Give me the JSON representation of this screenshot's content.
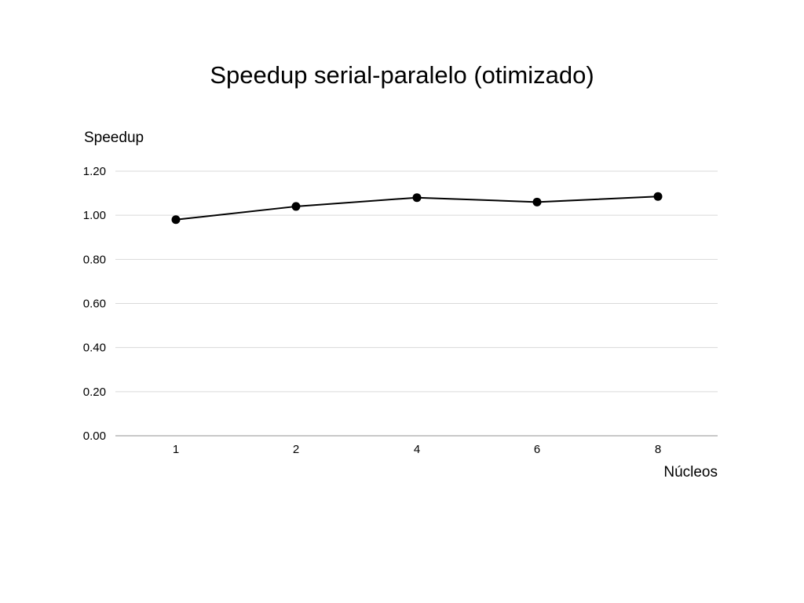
{
  "chart_data": {
    "type": "line",
    "title": "Speedup serial-paralelo (otimizado)",
    "xlabel": "Núcleos",
    "ylabel": "Speedup",
    "categories": [
      "1",
      "2",
      "4",
      "6",
      "8"
    ],
    "series": [
      {
        "values": [
          0.98,
          1.04,
          1.08,
          1.06,
          1.085
        ]
      }
    ],
    "ylim": [
      0,
      1.2
    ],
    "yticks": [
      "0.00",
      "0.20",
      "0.40",
      "0.60",
      "0.80",
      "1.00",
      "1.20"
    ],
    "grid": true,
    "legend": "none",
    "colors": {
      "line": "#000000",
      "marker": "#000000",
      "grid": "#d9d9d9",
      "axis": "#a6a6a6"
    }
  }
}
